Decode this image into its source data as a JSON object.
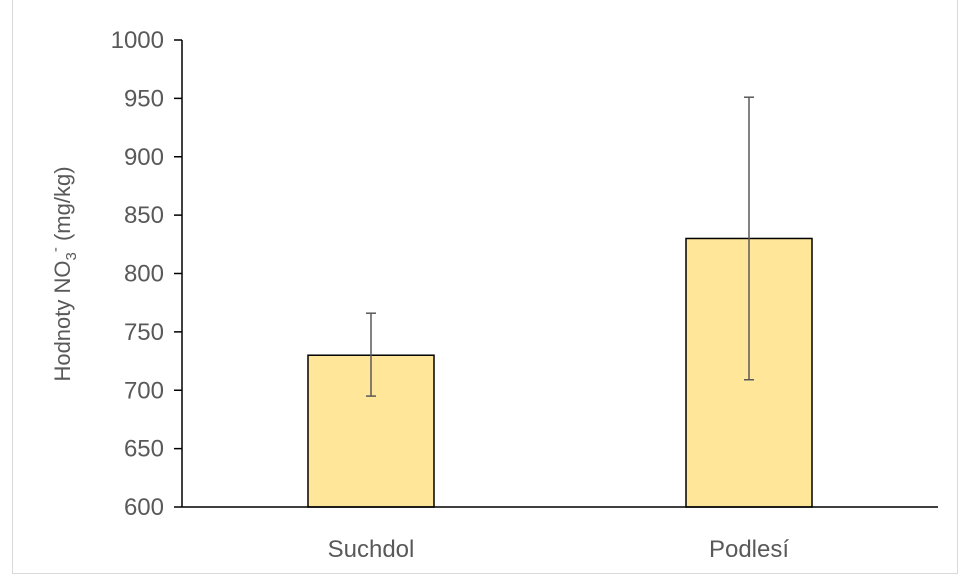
{
  "chart_data": {
    "type": "bar",
    "categories": [
      "Suchdol",
      "Podlesí"
    ],
    "values": [
      730,
      830
    ],
    "error_bars": [
      {
        "low": 695,
        "high": 766
      },
      {
        "low": 709,
        "high": 951
      }
    ],
    "ylabel": {
      "main": "Hodnoty NO",
      "sub": "3",
      "sup": "-",
      "unit": " (mg/kg)"
    },
    "ylim": [
      600,
      1000
    ],
    "yticks": [
      600,
      650,
      700,
      750,
      800,
      850,
      900,
      950,
      1000
    ],
    "grid": false,
    "bar_color": "#FFE699",
    "bar_edge": "#000000",
    "error_color": "#595959"
  }
}
